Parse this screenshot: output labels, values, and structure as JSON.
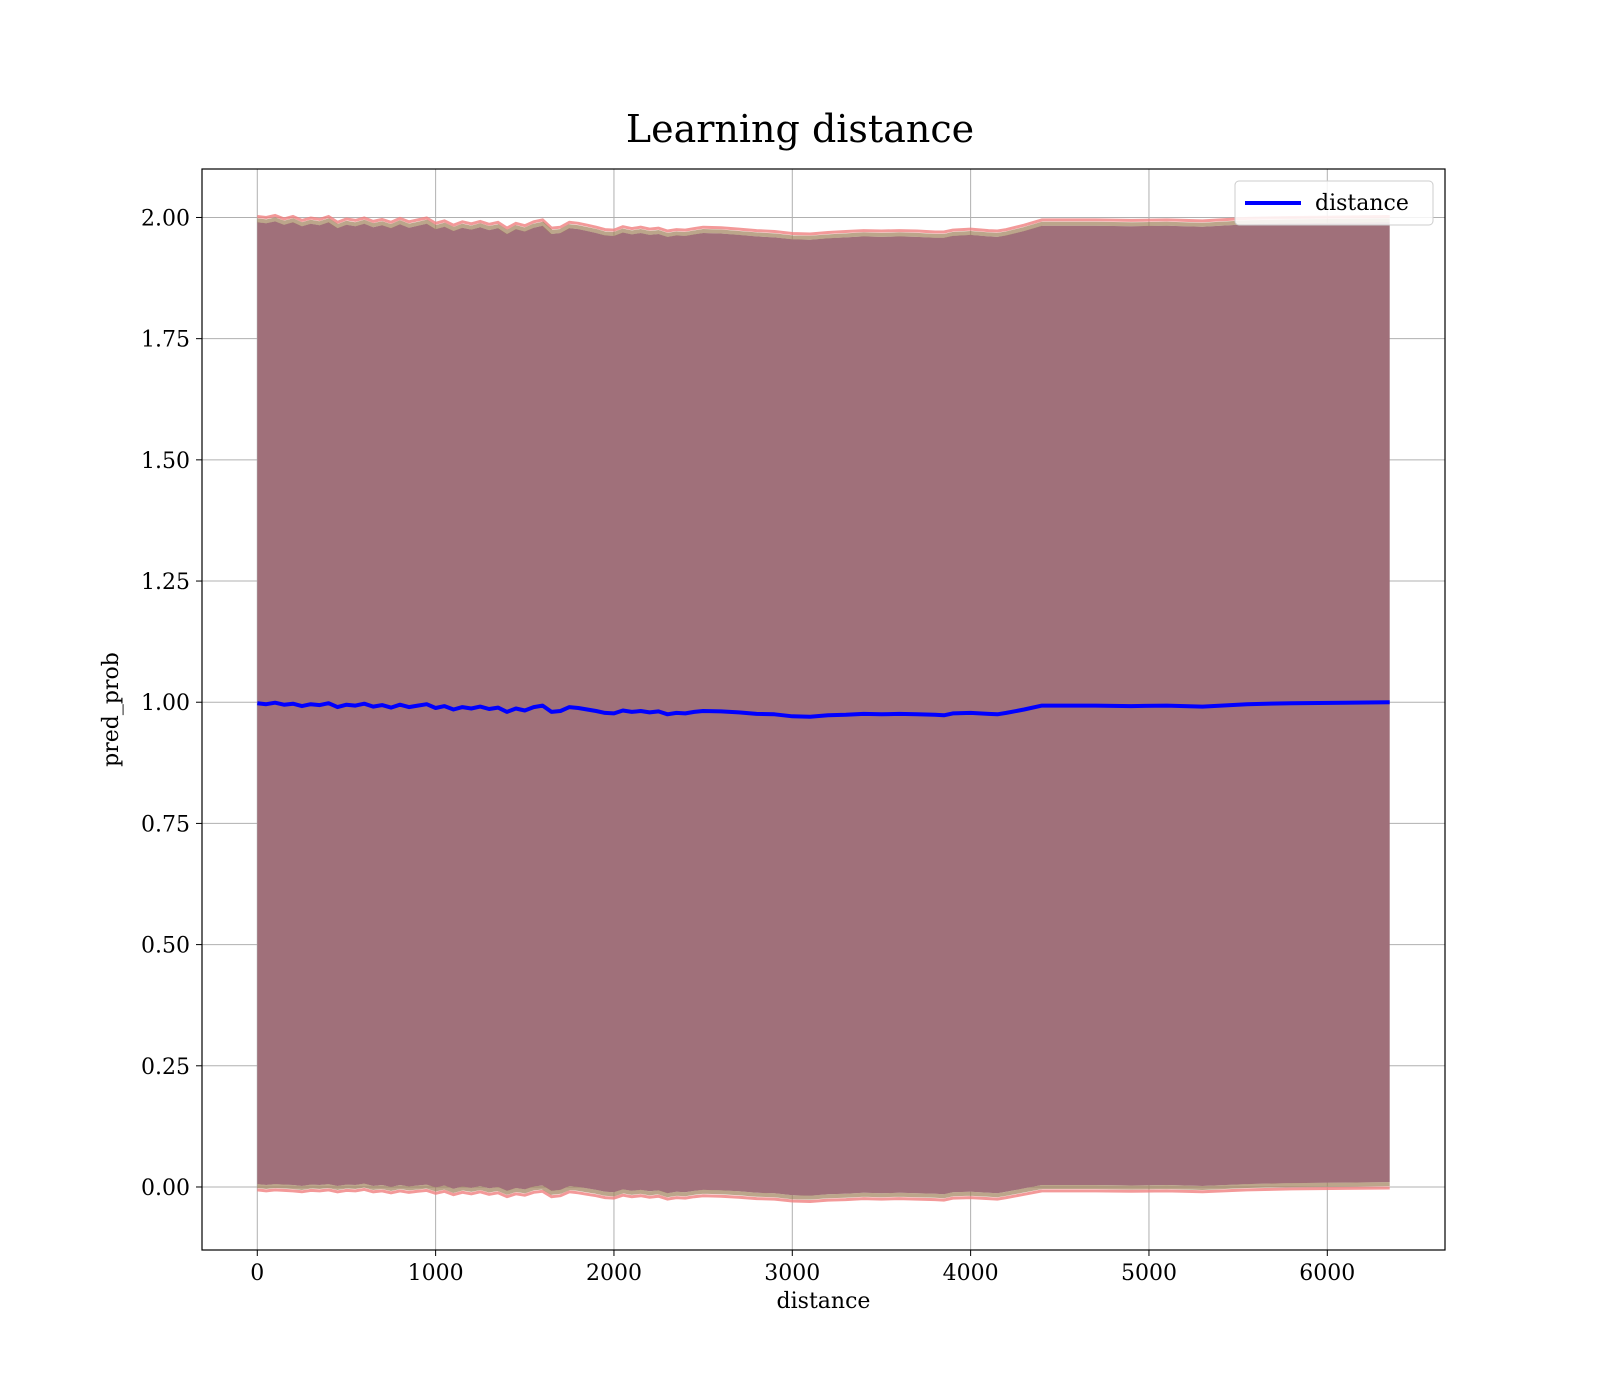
{
  "chart_data": {
    "type": "line",
    "title": "Learning distance",
    "xlabel": "distance",
    "ylabel": "pred_prob",
    "xlim": [
      -310,
      6660
    ],
    "ylim": [
      -0.13,
      2.1
    ],
    "xticks": [
      0,
      1000,
      2000,
      3000,
      4000,
      5000,
      6000
    ],
    "xtick_labels": [
      "0",
      "1000",
      "2000",
      "3000",
      "4000",
      "5000",
      "6000"
    ],
    "yticks": [
      0.0,
      0.25,
      0.5,
      0.75,
      1.0,
      1.25,
      1.5,
      1.75,
      2.0
    ],
    "ytick_labels": [
      "0.00",
      "0.25",
      "0.50",
      "0.75",
      "1.00",
      "1.25",
      "1.50",
      "1.75",
      "2.00"
    ],
    "grid": true,
    "legend": {
      "position": "top-right",
      "entries": [
        "distance"
      ]
    },
    "colors": {
      "line": "#0000ff",
      "band_fill": "#a0707a",
      "band_edge": "#f08080",
      "grid": "#b0b0b0"
    },
    "series": [
      {
        "name": "distance",
        "x": [
          0,
          50,
          100,
          150,
          200,
          250,
          300,
          350,
          400,
          450,
          500,
          550,
          600,
          650,
          700,
          750,
          800,
          850,
          900,
          950,
          1000,
          1050,
          1100,
          1150,
          1200,
          1250,
          1300,
          1350,
          1400,
          1450,
          1500,
          1550,
          1600,
          1650,
          1700,
          1750,
          1800,
          1850,
          1900,
          1950,
          2000,
          2050,
          2100,
          2150,
          2200,
          2250,
          2300,
          2350,
          2400,
          2450,
          2500,
          2600,
          2700,
          2800,
          2900,
          3000,
          3100,
          3200,
          3300,
          3400,
          3500,
          3600,
          3700,
          3800,
          3850,
          3900,
          4000,
          4100,
          4150,
          4200,
          4300,
          4400,
          4500,
          4700,
          4900,
          5100,
          5300,
          5550,
          5800,
          6100,
          6350
        ],
        "y": [
          0.998,
          0.996,
          0.999,
          0.995,
          0.997,
          0.992,
          0.996,
          0.994,
          0.998,
          0.99,
          0.995,
          0.993,
          0.997,
          0.991,
          0.994,
          0.989,
          0.995,
          0.99,
          0.993,
          0.996,
          0.988,
          0.992,
          0.985,
          0.99,
          0.987,
          0.991,
          0.986,
          0.989,
          0.98,
          0.987,
          0.983,
          0.99,
          0.993,
          0.98,
          0.982,
          0.99,
          0.988,
          0.985,
          0.982,
          0.978,
          0.977,
          0.983,
          0.98,
          0.982,
          0.979,
          0.981,
          0.975,
          0.978,
          0.977,
          0.98,
          0.982,
          0.981,
          0.979,
          0.976,
          0.975,
          0.971,
          0.97,
          0.973,
          0.974,
          0.976,
          0.975,
          0.976,
          0.975,
          0.974,
          0.973,
          0.977,
          0.978,
          0.976,
          0.975,
          0.978,
          0.985,
          0.993,
          0.993,
          0.993,
          0.992,
          0.993,
          0.991,
          0.996,
          0.998,
          0.999,
          1.0
        ],
        "band_upper": [
          1.99,
          1.988,
          1.992,
          1.985,
          1.99,
          1.982,
          1.987,
          1.984,
          1.99,
          1.978,
          1.985,
          1.982,
          1.987,
          1.98,
          1.984,
          1.978,
          1.986,
          1.979,
          1.983,
          1.987,
          1.976,
          1.981,
          1.972,
          1.979,
          1.975,
          1.98,
          1.974,
          1.978,
          1.966,
          1.976,
          1.971,
          1.979,
          1.983,
          1.966,
          1.968,
          1.978,
          1.976,
          1.972,
          1.968,
          1.963,
          1.962,
          1.969,
          1.965,
          1.968,
          1.964,
          1.966,
          1.96,
          1.963,
          1.962,
          1.965,
          1.968,
          1.967,
          1.964,
          1.961,
          1.959,
          1.955,
          1.954,
          1.957,
          1.959,
          1.961,
          1.96,
          1.961,
          1.96,
          1.958,
          1.958,
          1.962,
          1.964,
          1.961,
          1.96,
          1.963,
          1.972,
          1.983,
          1.983,
          1.983,
          1.982,
          1.983,
          1.981,
          1.986,
          1.988,
          1.989,
          1.99
        ],
        "band_lower": [
          0.006,
          0.004,
          0.006,
          0.005,
          0.004,
          0.002,
          0.005,
          0.004,
          0.006,
          0.002,
          0.005,
          0.004,
          0.007,
          0.002,
          0.004,
          0.0,
          0.004,
          0.001,
          0.003,
          0.005,
          -0.001,
          0.003,
          -0.004,
          0.001,
          -0.002,
          0.002,
          -0.003,
          0.0,
          -0.008,
          -0.002,
          -0.005,
          0.001,
          0.003,
          -0.008,
          -0.006,
          0.002,
          0.0,
          -0.003,
          -0.006,
          -0.01,
          -0.011,
          -0.005,
          -0.008,
          -0.006,
          -0.009,
          -0.007,
          -0.013,
          -0.01,
          -0.011,
          -0.008,
          -0.006,
          -0.007,
          -0.009,
          -0.012,
          -0.013,
          -0.017,
          -0.018,
          -0.015,
          -0.014,
          -0.012,
          -0.013,
          -0.012,
          -0.013,
          -0.014,
          -0.015,
          -0.011,
          -0.01,
          -0.012,
          -0.013,
          -0.01,
          -0.003,
          0.004,
          0.004,
          0.004,
          0.003,
          0.004,
          0.002,
          0.006,
          0.008,
          0.009,
          0.01
        ]
      }
    ]
  }
}
